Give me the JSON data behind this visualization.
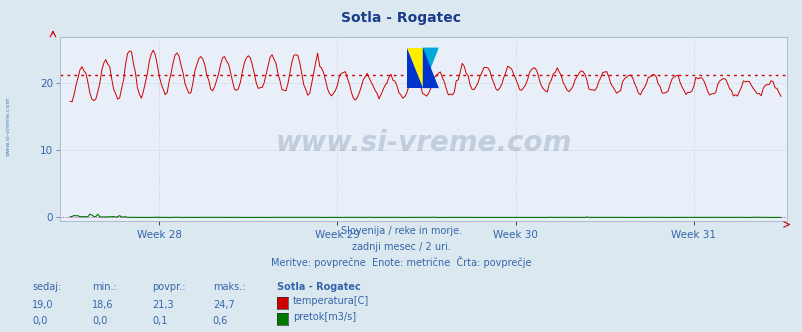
{
  "title": "Sotla - Rogatec",
  "title_color": "#1a3c8a",
  "bg_color": "#dce8f0",
  "plot_bg_color": "#e8eff8",
  "grid_color": "#c0ccd8",
  "x_labels": [
    "Week 28",
    "Week 29",
    "Week 30",
    "Week 31"
  ],
  "y_ticks": [
    0,
    10,
    20
  ],
  "ylim": [
    -0.5,
    27
  ],
  "temp_color": "#cc0000",
  "temp_avg": 21.3,
  "flow_color": "#007700",
  "flow_avg_color": "#cc00cc",
  "avg_line_color": "#cc0000",
  "watermark_text": "www.si-vreme.com",
  "watermark_color": "#1a3a6a",
  "watermark_alpha": 0.18,
  "watermark_fontsize": 20,
  "subtitle1": "Slovenija / reke in morje.",
  "subtitle2": "zadnji mesec / 2 uri.",
  "subtitle3": "Meritve: povprečne  Enote: metrične  Črta: povprečje",
  "subtitle_color": "#3366aa",
  "footer_color": "#3366aa",
  "label_color": "#3366aa",
  "tick_color": "#3366aa",
  "legend_title": "Sotla - Rogatec",
  "legend_temp_label": "temperatura[C]",
  "legend_flow_label": "pretok[m3/s]",
  "sedaj_label": "sedaj:",
  "min_label": "min.:",
  "povpr_label": "povpr.:",
  "maks_label": "maks.:",
  "temp_sedaj": 19.0,
  "temp_min": 18.6,
  "temp_povpr": 21.3,
  "temp_maks": 24.7,
  "flow_sedaj": 0.0,
  "flow_min": 0.0,
  "flow_povpr": 0.1,
  "flow_maks": 0.6,
  "n_points": 360
}
